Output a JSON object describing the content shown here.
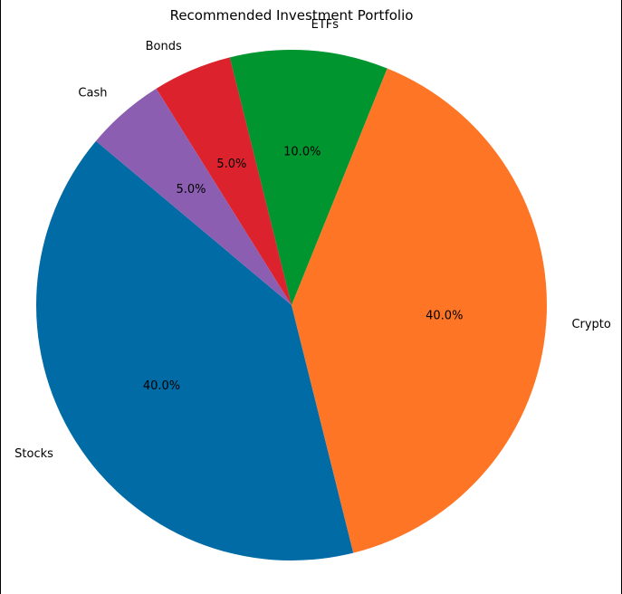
{
  "chart_data": {
    "type": "pie",
    "title": "Recommended Investment Portfolio",
    "slices": [
      {
        "label": "Stocks",
        "value": 40.0,
        "pct_label": "40.0%",
        "color": "#006ba4"
      },
      {
        "label": "Crypto",
        "value": 40.0,
        "pct_label": "40.0%",
        "color": "#ff7526"
      },
      {
        "label": "ETFs",
        "value": 10.0,
        "pct_label": "10.0%",
        "color": "#00952f"
      },
      {
        "label": "Bonds",
        "value": 5.0,
        "pct_label": "5.0%",
        "color": "#dc232d"
      },
      {
        "label": "Cash",
        "value": 5.0,
        "pct_label": "5.0%",
        "color": "#8c5eb2"
      }
    ],
    "start_angle_deg": 140,
    "direction": "counterclockwise"
  }
}
